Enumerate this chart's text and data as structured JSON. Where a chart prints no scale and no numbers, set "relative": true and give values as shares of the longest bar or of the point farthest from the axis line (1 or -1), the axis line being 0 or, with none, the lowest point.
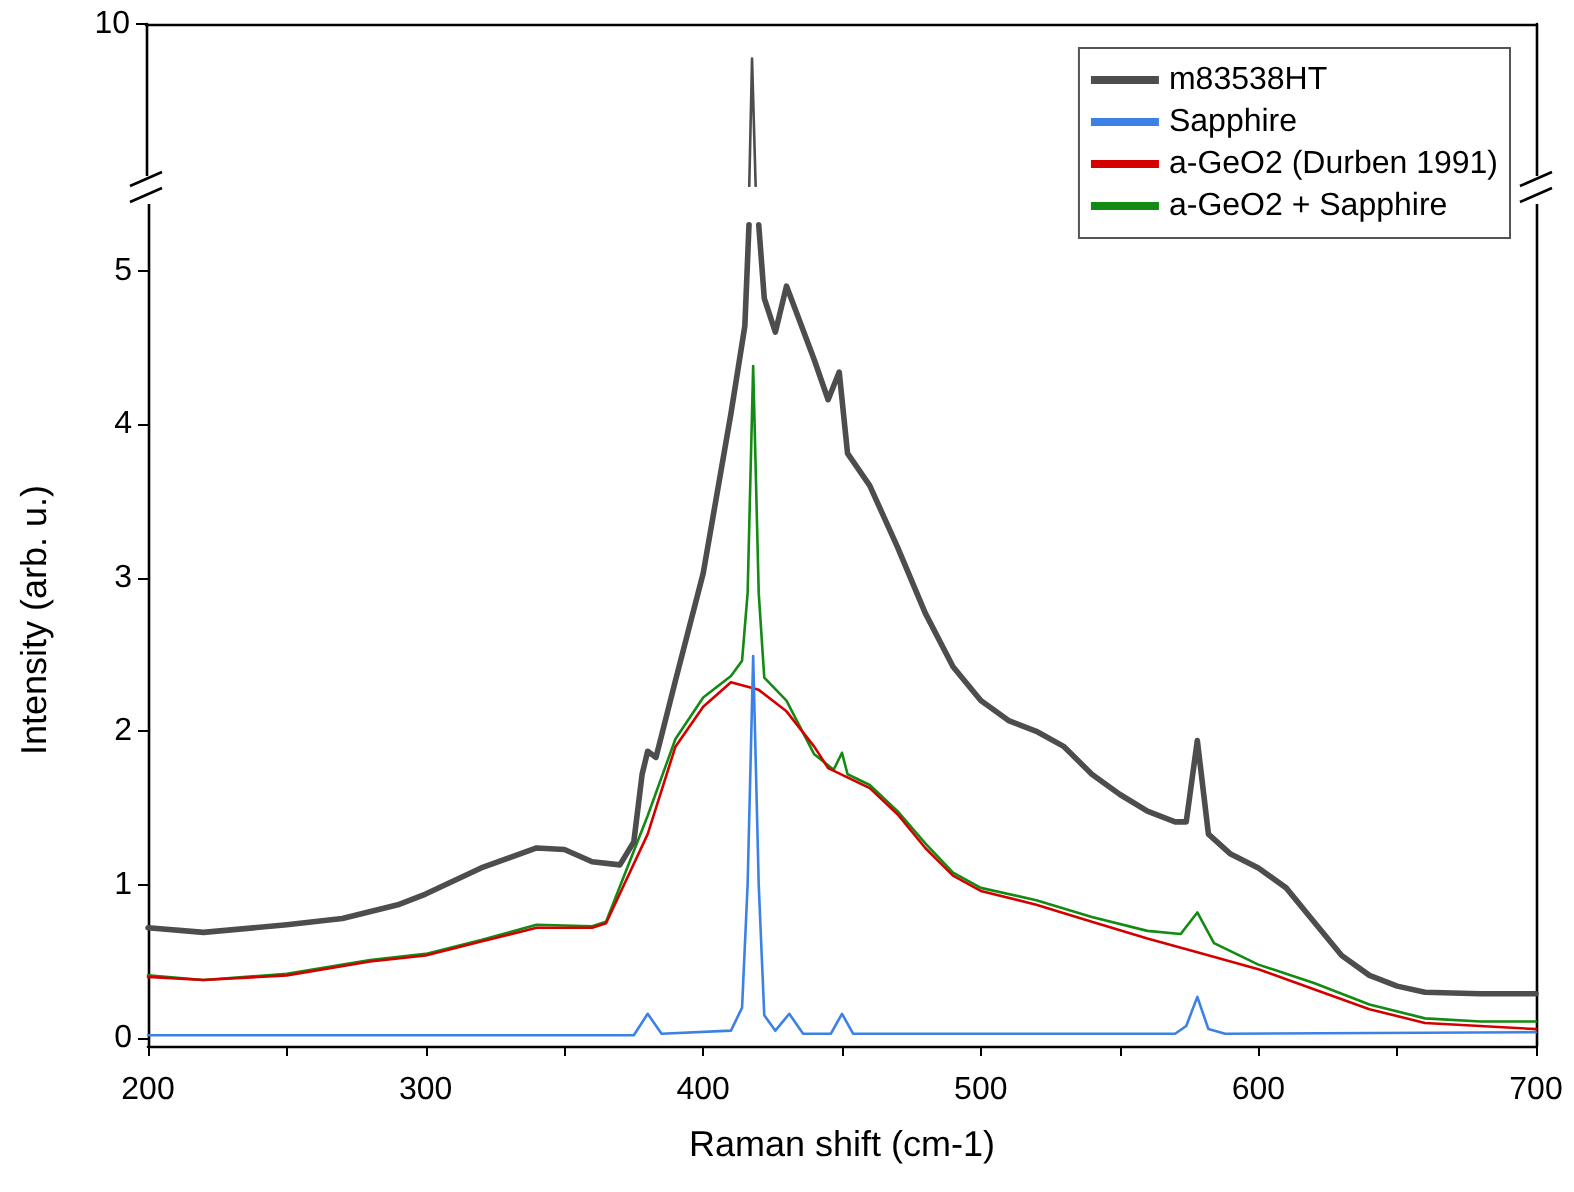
{
  "chart_data": [
    {
      "type": "line",
      "xlim": [
        200,
        700
      ],
      "relative": true,
      "annotations": [
        "10"
      ],
      "grid": false,
      "legend": false,
      "series": [
        {
          "color": "#4d4d4d",
          "x": [
            417,
            418,
            419.3
          ],
          "values": [
            0,
            1,
            0
          ]
        }
      ]
    },
    {
      "type": "line",
      "xlabel": "Raman shift (cm-1)",
      "ylabel": "Intensity (arb. u.)",
      "xlim": [
        200,
        700
      ],
      "xticks": [
        200,
        {
          "value": 250,
          "label": null
        },
        300,
        {
          "value": 350,
          "label": null
        },
        400,
        {
          "value": 450,
          "label": null
        },
        500,
        {
          "value": 550,
          "label": null
        },
        600,
        {
          "value": 650,
          "label": null
        },
        700
      ],
      "ylim": [
        -0.05,
        5.5
      ],
      "yticks": [
        0,
        1,
        2,
        3,
        4,
        5
      ],
      "grid": false,
      "legend": "top right",
      "series": [
        {
          "name": "m83538HT",
          "color": "#4d4d4d",
          "x": [
            200,
            220,
            250,
            270,
            290,
            300,
            320,
            340,
            350,
            360,
            370,
            375,
            378,
            380,
            383,
            390,
            400,
            410,
            415,
            416.5,
            417,
            419.5,
            420,
            422,
            426,
            430,
            440,
            445,
            449,
            452,
            460,
            470,
            480,
            490,
            500,
            510,
            520,
            530,
            540,
            550,
            560,
            570,
            574,
            578,
            582,
            590,
            600,
            610,
            620,
            630,
            640,
            650,
            660,
            680,
            700
          ],
          "values": [
            0.72,
            0.69,
            0.74,
            0.78,
            0.87,
            0.94,
            1.11,
            1.24,
            1.23,
            1.15,
            1.13,
            1.28,
            1.72,
            1.87,
            1.83,
            2.33,
            3.03,
            4.07,
            4.64,
            5.3,
            null,
            null,
            5.3,
            4.82,
            4.6,
            4.9,
            4.42,
            4.16,
            4.34,
            3.81,
            3.6,
            3.2,
            2.77,
            2.42,
            2.2,
            2.07,
            2.0,
            1.9,
            1.72,
            1.59,
            1.48,
            1.41,
            1.41,
            1.94,
            1.33,
            1.2,
            1.11,
            0.98,
            0.76,
            0.54,
            0.41,
            0.34,
            0.3,
            0.29,
            0.29
          ]
        },
        {
          "name": "Sapphire",
          "color": "#3c82e6",
          "x": [
            200,
            375,
            380,
            385,
            410,
            414,
            416,
            418,
            420,
            422,
            426,
            431,
            436,
            446,
            450,
            454,
            570,
            574,
            578,
            582,
            588,
            700
          ],
          "values": [
            0.02,
            0.02,
            0.16,
            0.03,
            0.05,
            0.2,
            1.0,
            2.49,
            1.0,
            0.15,
            0.05,
            0.16,
            0.03,
            0.03,
            0.16,
            0.03,
            0.03,
            0.08,
            0.27,
            0.06,
            0.03,
            0.04
          ]
        },
        {
          "name": "a-GeO2 (Durben 1991)",
          "color": "#d40000",
          "x": [
            200,
            220,
            250,
            280,
            300,
            320,
            340,
            360,
            365,
            380,
            390,
            400,
            410,
            420,
            430,
            440,
            445,
            460,
            470,
            480,
            490,
            500,
            520,
            540,
            560,
            578,
            600,
            620,
            640,
            660,
            700
          ],
          "values": [
            0.4,
            0.38,
            0.41,
            0.5,
            0.54,
            0.63,
            0.72,
            0.72,
            0.75,
            1.33,
            1.9,
            2.16,
            2.32,
            2.27,
            2.13,
            1.9,
            1.76,
            1.63,
            1.46,
            1.24,
            1.06,
            0.96,
            0.87,
            0.76,
            0.65,
            0.56,
            0.45,
            0.32,
            0.19,
            0.1,
            0.06
          ]
        },
        {
          "name": "a-GeO2 + Sapphire",
          "color": "#138a13",
          "x": [
            200,
            220,
            250,
            280,
            300,
            320,
            340,
            360,
            365,
            380,
            390,
            400,
            410,
            414,
            416,
            418,
            420,
            422,
            430,
            440,
            447,
            450,
            452,
            460,
            470,
            480,
            490,
            500,
            520,
            540,
            560,
            572,
            578,
            584,
            600,
            620,
            640,
            660,
            680,
            700
          ],
          "values": [
            0.41,
            0.38,
            0.42,
            0.51,
            0.55,
            0.64,
            0.74,
            0.73,
            0.76,
            1.45,
            1.95,
            2.22,
            2.36,
            2.46,
            2.9,
            4.38,
            2.9,
            2.35,
            2.2,
            1.85,
            1.75,
            1.86,
            1.72,
            1.65,
            1.48,
            1.27,
            1.08,
            0.98,
            0.9,
            0.79,
            0.7,
            0.68,
            0.82,
            0.62,
            0.48,
            0.36,
            0.22,
            0.13,
            0.11,
            0.11
          ]
        }
      ]
    }
  ]
}
